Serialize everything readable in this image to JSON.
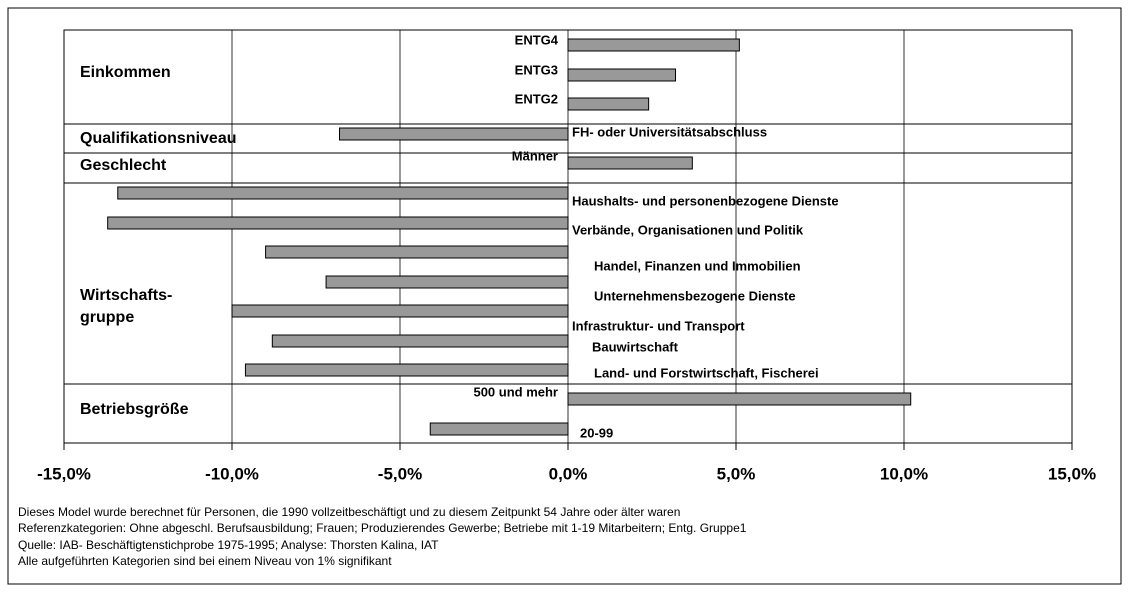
{
  "chart_data": {
    "type": "bar",
    "orientation": "horizontal",
    "groups": [
      {
        "name": "Einkommen",
        "categories": [
          "ENTG4",
          "ENTG3",
          "ENTG2"
        ],
        "values": [
          5.1,
          3.2,
          2.4
        ]
      },
      {
        "name": "Qualifikationsniveau",
        "categories": [
          "FH- oder Universitätsabschluss"
        ],
        "values": [
          -6.8
        ]
      },
      {
        "name": "Geschlecht",
        "categories": [
          "Männer"
        ],
        "values": [
          3.7
        ]
      },
      {
        "name": "Wirtschafts-\ngruppe",
        "categories": [
          "Haushalts- und personenbezogene Dienste",
          "Verbände, Organisationen und Politik",
          "Handel, Finanzen und Immobilien",
          "Unternehmensbezogene Dienste",
          "Infrastruktur- und Transport",
          "Bauwirtschaft",
          "Land- und Forstwirtschaft, Fischerei"
        ],
        "values": [
          -13.4,
          -13.7,
          -9.0,
          -7.2,
          -10.0,
          -8.8,
          -9.6
        ]
      },
      {
        "name": "Betriebsgröße",
        "categories": [
          "500 und mehr",
          "20-99"
        ],
        "values": [
          10.2,
          -4.1
        ]
      }
    ],
    "color": "#999999",
    "xlim": [
      -15,
      15
    ],
    "xticks": [
      {
        "value": -15,
        "label": "-15,0%"
      },
      {
        "value": -10,
        "label": "-10,0%"
      },
      {
        "value": -5,
        "label": "-5,0%"
      },
      {
        "value": 0,
        "label": "0,0%"
      },
      {
        "value": 5,
        "label": "5,0%"
      },
      {
        "value": 10,
        "label": "10,0%"
      },
      {
        "value": 15,
        "label": "15,0%"
      }
    ],
    "grid": true,
    "notes": [
      "Dieses Model wurde berechnet für Personen, die 1990 vollzeitbeschäftigt und zu diesem Zeitpunkt 54 Jahre oder älter waren",
      "Referenzkategorien: Ohne abgeschl. Berufsausbildung; Frauen; Produzierendes Gewerbe; Betriebe mit 1-19 Mitarbeitern; Entg. Gruppe1",
      "Quelle: IAB- Beschäftigtenstichprobe 1975-1995; Analyse: Thorsten Kalina, IAT",
      "Alle aufgeführten Kategorien sind bei einem Niveau von 1% signifikant"
    ]
  }
}
